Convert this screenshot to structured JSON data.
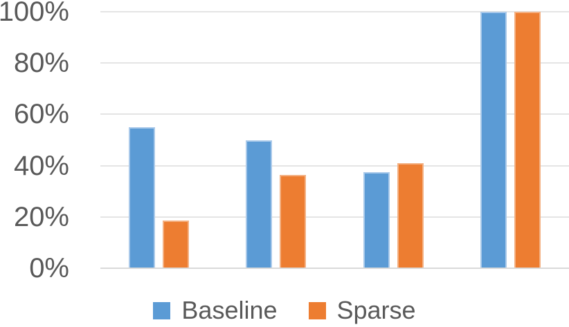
{
  "chart_data": {
    "type": "bar",
    "categories": [
      "",
      "",
      "",
      ""
    ],
    "series": [
      {
        "name": "Baseline",
        "color": "#5B9BD5",
        "edge_color": "#A9C9EA",
        "values": [
          55,
          50,
          37.5,
          100
        ]
      },
      {
        "name": "Sparse",
        "color": "#ED7D31",
        "edge_color": "#F4B183",
        "values": [
          18.5,
          36.5,
          41,
          100
        ]
      }
    ],
    "y_ticks": [
      {
        "label": "0%",
        "value": 0
      },
      {
        "label": "20%",
        "value": 20
      },
      {
        "label": "40%",
        "value": 40
      },
      {
        "label": "60%",
        "value": 60
      },
      {
        "label": "80%",
        "value": 80
      },
      {
        "label": "100%",
        "value": 100
      }
    ],
    "ylim": [
      0,
      100
    ],
    "grid": true,
    "title": "",
    "xlabel": "",
    "ylabel": "",
    "legend": {
      "position": "bottom",
      "entries": [
        "Baseline",
        "Sparse"
      ]
    },
    "styles": {
      "background": "#FFFFFF",
      "tick_text_color": "#595959",
      "legend_text_color": "#595959",
      "gridline_color": "#E4E4E4",
      "axis_line_color": "#D9D9D9"
    }
  }
}
